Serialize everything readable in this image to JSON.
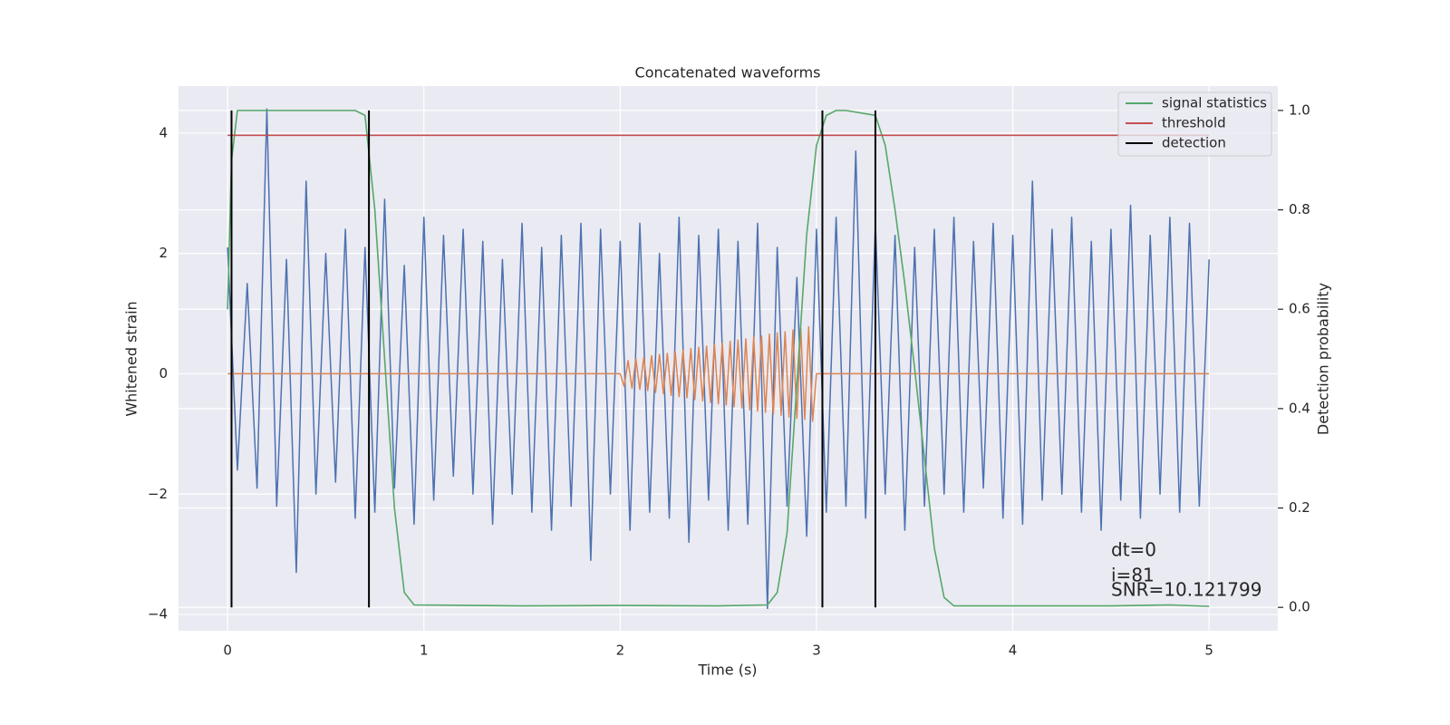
{
  "chart_data": {
    "type": "line",
    "title": "Concatenated waveforms",
    "xlabel": "Time (s)",
    "ylabel": "Whitened strain",
    "y2label": "Detection probability",
    "xlim": [
      -0.25,
      5.35
    ],
    "ylim": [
      -4.27,
      4.78
    ],
    "y2lim": [
      -0.047,
      1.049
    ],
    "xticks": [
      0,
      1,
      2,
      3,
      4,
      5
    ],
    "yticks": [
      {
        "value": -4,
        "label": "−4"
      },
      {
        "value": -2,
        "label": "−2"
      },
      0,
      2,
      4
    ],
    "y2ticks": [
      {
        "value": 0,
        "label": "0.0"
      },
      0.2,
      0.4,
      0.6,
      0.8,
      {
        "value": 1,
        "label": "1.0"
      }
    ],
    "grid": true,
    "legend": "upper right",
    "annotations": [
      "dt=0",
      "i=81",
      "SNR=10.121799"
    ],
    "series": [
      {
        "color": "#4c72b0",
        "x": [
          0,
          0.05,
          0.1,
          0.15,
          0.2,
          0.25,
          0.3,
          0.35,
          0.4,
          0.45,
          0.5,
          0.55,
          0.6,
          0.65,
          0.7,
          0.75,
          0.8,
          0.85,
          0.9,
          0.95,
          1,
          1.05,
          1.1,
          1.15,
          1.2,
          1.25,
          1.3,
          1.35,
          1.4,
          1.45,
          1.5,
          1.55,
          1.6,
          1.65,
          1.7,
          1.75,
          1.8,
          1.85,
          1.9,
          1.95,
          2,
          2.05,
          2.1,
          2.15,
          2.2,
          2.25,
          2.3,
          2.35,
          2.4,
          2.45,
          2.5,
          2.55,
          2.6,
          2.65,
          2.7,
          2.75,
          2.8,
          2.85,
          2.9,
          2.95,
          3,
          3.05,
          3.1,
          3.15,
          3.2,
          3.25,
          3.3,
          3.35,
          3.4,
          3.45,
          3.5,
          3.55,
          3.6,
          3.65,
          3.7,
          3.75,
          3.8,
          3.85,
          3.9,
          3.95,
          4,
          4.05,
          4.1,
          4.15,
          4.2,
          4.25,
          4.3,
          4.35,
          4.4,
          4.45,
          4.5,
          4.55,
          4.6,
          4.65,
          4.7,
          4.75,
          4.8,
          4.85,
          4.9,
          4.95,
          5
        ],
        "values": [
          2.1,
          -1.6,
          1.5,
          -1.9,
          4.4,
          -2.2,
          1.9,
          -3.3,
          3.2,
          -2.0,
          2.0,
          -1.8,
          2.4,
          -2.4,
          2.1,
          -2.3,
          2.9,
          -1.9,
          1.8,
          -2.5,
          2.6,
          -2.1,
          2.3,
          -1.7,
          2.4,
          -2.0,
          2.2,
          -2.5,
          1.9,
          -2.0,
          2.5,
          -2.3,
          2.1,
          -2.6,
          2.3,
          -2.2,
          2.5,
          -3.1,
          2.4,
          -2.0,
          2.2,
          -2.6,
          2.5,
          -2.3,
          2.0,
          -2.4,
          2.6,
          -2.8,
          2.3,
          -2.1,
          2.4,
          -2.6,
          2.2,
          -2.5,
          2.5,
          -3.9,
          2.1,
          -2.2,
          1.6,
          -2.7,
          2.4,
          -2.3,
          2.6,
          -2.2,
          3.7,
          -2.4,
          2.5,
          -2.0,
          2.3,
          -2.6,
          2.1,
          -2.2,
          2.4,
          -2.0,
          2.6,
          -2.3,
          2.2,
          -1.9,
          2.5,
          -2.4,
          2.3,
          -2.5,
          3.2,
          -2.1,
          2.4,
          -2.0,
          2.6,
          -2.3,
          2.2,
          -2.6,
          2.4,
          -2.1,
          2.8,
          -2.4,
          2.3,
          -2.0,
          2.6,
          -2.3,
          2.5,
          -2.2,
          1.9
        ]
      },
      {
        "color": "#dd8452",
        "x": [
          0,
          2,
          2.02,
          2.04,
          2.06,
          2.08,
          2.1,
          2.12,
          2.14,
          2.16,
          2.18,
          2.2,
          2.22,
          2.24,
          2.26,
          2.28,
          2.3,
          2.32,
          2.34,
          2.36,
          2.38,
          2.4,
          2.42,
          2.44,
          2.46,
          2.48,
          2.5,
          2.52,
          2.54,
          2.56,
          2.58,
          2.6,
          2.62,
          2.64,
          2.66,
          2.68,
          2.7,
          2.72,
          2.74,
          2.76,
          2.78,
          2.8,
          2.82,
          2.84,
          2.86,
          2.88,
          2.9,
          2.92,
          2.94,
          2.96,
          2.98,
          3,
          5
        ],
        "values": [
          0,
          0,
          -0.21,
          0.22,
          -0.24,
          0.25,
          -0.26,
          0.27,
          -0.28,
          0.3,
          -0.31,
          0.32,
          -0.33,
          0.34,
          -0.36,
          0.37,
          -0.38,
          0.39,
          -0.4,
          0.42,
          -0.43,
          0.44,
          -0.45,
          0.46,
          -0.48,
          0.49,
          -0.5,
          0.51,
          -0.52,
          0.54,
          -0.55,
          0.56,
          -0.57,
          0.58,
          -0.6,
          0.61,
          -0.62,
          0.63,
          -0.64,
          0.66,
          -0.67,
          0.68,
          -0.69,
          0.7,
          -0.72,
          0.73,
          -0.74,
          0.75,
          -0.76,
          0.78,
          -0.79,
          0,
          0
        ]
      },
      {
        "name": "signal statistics",
        "color": "#55a868",
        "axis": "y2",
        "x": [
          0,
          0.02,
          0.05,
          0.1,
          0.65,
          0.7,
          0.75,
          0.8,
          0.85,
          0.9,
          0.95,
          1.5,
          2.0,
          2.5,
          2.75,
          2.8,
          2.85,
          2.9,
          2.95,
          3.0,
          3.05,
          3.1,
          3.15,
          3.3,
          3.35,
          3.4,
          3.45,
          3.5,
          3.55,
          3.6,
          3.65,
          3.7,
          4.0,
          4.5,
          4.8,
          5.0
        ],
        "values": [
          0.6,
          0.9,
          1.0,
          1.0,
          1.0,
          0.99,
          0.8,
          0.5,
          0.2,
          0.03,
          0.005,
          0.003,
          0.004,
          0.003,
          0.005,
          0.03,
          0.15,
          0.45,
          0.75,
          0.93,
          0.99,
          1.0,
          1.0,
          0.99,
          0.93,
          0.8,
          0.65,
          0.48,
          0.3,
          0.12,
          0.02,
          0.003,
          0.003,
          0.003,
          0.005,
          0.002
        ]
      },
      {
        "name": "threshold",
        "color": "#c44e52",
        "axis": "y2",
        "x": [
          0,
          5
        ],
        "values": [
          0.95,
          0.95
        ]
      },
      {
        "name": "detection",
        "color": "#000000",
        "axis": "y2",
        "type": "vlines",
        "x": [
          0.02,
          0.72,
          3.03,
          3.3
        ],
        "ymin": 0,
        "ymax": 1
      }
    ]
  }
}
